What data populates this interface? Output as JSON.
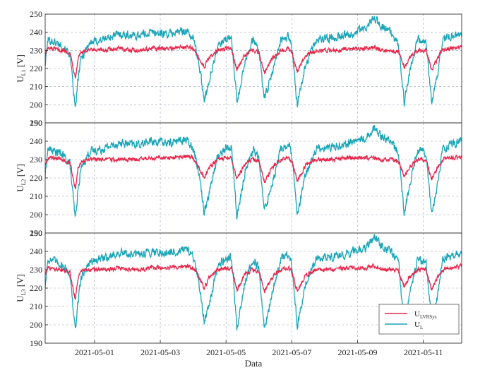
{
  "chart_data": [
    {
      "type": "line",
      "ylabel_main": "U",
      "ylabel_sub": "L1",
      "ylabel_unit": " [V]",
      "ylim": [
        190,
        250
      ],
      "yticks": [
        190,
        200,
        210,
        220,
        230,
        240,
        250
      ],
      "xlim": [
        "2021-04-29T12:00",
        "2021-05-12T04:00"
      ],
      "series": [
        {
          "key": "ul",
          "color": "#1aa6b7",
          "x": [
            "2021-04-29T12:00",
            "2021-04-29T14:00",
            "2021-04-30T00:00",
            "2021-04-30T06:00",
            "2021-04-30T10:00",
            "2021-04-30T12:00",
            "2021-04-30T14:00",
            "2021-04-30T20:00",
            "2021-05-01T06:00",
            "2021-05-01T18:00",
            "2021-05-02T06:00",
            "2021-05-02T18:00",
            "2021-05-03T06:00",
            "2021-05-03T18:00",
            "2021-05-04T00:00",
            "2021-05-04T04:00",
            "2021-05-04T08:00",
            "2021-05-04T12:00",
            "2021-05-04T18:00",
            "2021-05-05T00:00",
            "2021-05-05T04:00",
            "2021-05-05T08:00",
            "2021-05-05T14:00",
            "2021-05-05T20:00",
            "2021-05-06T00:00",
            "2021-05-06T04:00",
            "2021-05-06T10:00",
            "2021-05-06T16:00",
            "2021-05-06T22:00",
            "2021-05-07T00:00",
            "2021-05-07T04:00",
            "2021-05-07T10:00",
            "2021-05-07T18:00",
            "2021-05-08T06:00",
            "2021-05-08T18:00",
            "2021-05-09T06:00",
            "2021-05-09T12:00",
            "2021-05-09T18:00",
            "2021-05-10T00:00",
            "2021-05-10T06:00",
            "2021-05-10T10:00",
            "2021-05-10T14:00",
            "2021-05-10T20:00",
            "2021-05-11T02:00",
            "2021-05-11T06:00",
            "2021-05-11T10:00",
            "2021-05-11T14:00",
            "2021-05-11T20:00",
            "2021-05-12T04:00"
          ],
          "y": [
            222,
            236,
            233,
            228,
            197,
            214,
            225,
            234,
            236,
            239,
            238,
            240,
            239,
            241,
            237,
            224,
            203,
            214,
            232,
            236,
            237,
            201,
            225,
            236,
            230,
            203,
            218,
            236,
            238,
            232,
            199,
            222,
            236,
            237,
            239,
            242,
            248,
            243,
            240,
            233,
            201,
            218,
            236,
            234,
            202,
            214,
            236,
            238,
            240
          ]
        },
        {
          "key": "ulvr",
          "color": "#e8264a",
          "x": [
            "2021-04-29T12:00",
            "2021-04-29T14:00",
            "2021-04-30T00:00",
            "2021-04-30T06:00",
            "2021-04-30T10:00",
            "2021-04-30T12:00",
            "2021-04-30T14:00",
            "2021-04-30T20:00",
            "2021-05-01T06:00",
            "2021-05-01T18:00",
            "2021-05-02T06:00",
            "2021-05-02T18:00",
            "2021-05-03T06:00",
            "2021-05-03T18:00",
            "2021-05-04T00:00",
            "2021-05-04T04:00",
            "2021-05-04T08:00",
            "2021-05-04T12:00",
            "2021-05-04T18:00",
            "2021-05-05T00:00",
            "2021-05-05T04:00",
            "2021-05-05T08:00",
            "2021-05-05T14:00",
            "2021-05-05T20:00",
            "2021-05-06T00:00",
            "2021-05-06T04:00",
            "2021-05-06T10:00",
            "2021-05-06T16:00",
            "2021-05-06T22:00",
            "2021-05-07T00:00",
            "2021-05-07T04:00",
            "2021-05-07T10:00",
            "2021-05-07T18:00",
            "2021-05-08T06:00",
            "2021-05-08T18:00",
            "2021-05-09T06:00",
            "2021-05-09T12:00",
            "2021-05-09T18:00",
            "2021-05-10T00:00",
            "2021-05-10T06:00",
            "2021-05-10T10:00",
            "2021-05-10T14:00",
            "2021-05-10T20:00",
            "2021-05-11T02:00",
            "2021-05-11T06:00",
            "2021-05-11T10:00",
            "2021-05-11T14:00",
            "2021-05-11T20:00",
            "2021-05-12T04:00"
          ],
          "y": [
            228,
            231,
            230,
            229,
            215,
            226,
            229,
            230,
            230,
            231,
            230,
            231,
            231,
            232,
            231,
            226,
            221,
            226,
            230,
            231,
            231,
            219,
            228,
            230,
            229,
            218,
            226,
            230,
            231,
            229,
            218,
            227,
            230,
            230,
            231,
            231,
            232,
            230,
            230,
            229,
            221,
            226,
            230,
            230,
            219,
            225,
            230,
            231,
            232
          ]
        }
      ]
    },
    {
      "type": "line",
      "ylabel_main": "U",
      "ylabel_sub": "L2",
      "ylabel_unit": " [V]",
      "ylim": [
        190,
        250
      ],
      "yticks": [
        190,
        200,
        210,
        220,
        230,
        240,
        250
      ],
      "xlim": [
        "2021-04-29T12:00",
        "2021-05-12T04:00"
      ],
      "series": [
        {
          "key": "ul",
          "color": "#1aa6b7",
          "x": [
            "2021-04-29T12:00",
            "2021-04-29T14:00",
            "2021-04-30T00:00",
            "2021-04-30T06:00",
            "2021-04-30T10:00",
            "2021-04-30T12:00",
            "2021-04-30T14:00",
            "2021-04-30T20:00",
            "2021-05-01T06:00",
            "2021-05-01T18:00",
            "2021-05-02T06:00",
            "2021-05-02T18:00",
            "2021-05-03T06:00",
            "2021-05-03T18:00",
            "2021-05-04T00:00",
            "2021-05-04T04:00",
            "2021-05-04T08:00",
            "2021-05-04T12:00",
            "2021-05-04T18:00",
            "2021-05-05T00:00",
            "2021-05-05T04:00",
            "2021-05-05T08:00",
            "2021-05-05T14:00",
            "2021-05-05T20:00",
            "2021-05-06T00:00",
            "2021-05-06T04:00",
            "2021-05-06T10:00",
            "2021-05-06T16:00",
            "2021-05-06T22:00",
            "2021-05-07T00:00",
            "2021-05-07T04:00",
            "2021-05-07T10:00",
            "2021-05-07T18:00",
            "2021-05-08T06:00",
            "2021-05-08T18:00",
            "2021-05-09T06:00",
            "2021-05-09T12:00",
            "2021-05-09T18:00",
            "2021-05-10T00:00",
            "2021-05-10T06:00",
            "2021-05-10T10:00",
            "2021-05-10T14:00",
            "2021-05-10T20:00",
            "2021-05-11T02:00",
            "2021-05-11T06:00",
            "2021-05-11T10:00",
            "2021-05-11T14:00",
            "2021-05-11T20:00",
            "2021-05-12T04:00"
          ],
          "y": [
            221,
            236,
            233,
            228,
            197,
            213,
            225,
            234,
            236,
            239,
            238,
            240,
            239,
            241,
            237,
            224,
            202,
            213,
            232,
            236,
            237,
            198,
            224,
            236,
            230,
            202,
            218,
            236,
            238,
            232,
            199,
            222,
            236,
            237,
            239,
            242,
            247,
            243,
            240,
            233,
            200,
            217,
            236,
            234,
            201,
            214,
            236,
            238,
            240
          ]
        },
        {
          "key": "ulvr",
          "color": "#e8264a",
          "x": [
            "2021-04-29T12:00",
            "2021-04-29T14:00",
            "2021-04-30T00:00",
            "2021-04-30T06:00",
            "2021-04-30T10:00",
            "2021-04-30T12:00",
            "2021-04-30T14:00",
            "2021-04-30T20:00",
            "2021-05-01T06:00",
            "2021-05-01T18:00",
            "2021-05-02T06:00",
            "2021-05-02T18:00",
            "2021-05-03T06:00",
            "2021-05-03T18:00",
            "2021-05-04T00:00",
            "2021-05-04T04:00",
            "2021-05-04T08:00",
            "2021-05-04T12:00",
            "2021-05-04T18:00",
            "2021-05-05T00:00",
            "2021-05-05T04:00",
            "2021-05-05T08:00",
            "2021-05-05T14:00",
            "2021-05-05T20:00",
            "2021-05-06T00:00",
            "2021-05-06T04:00",
            "2021-05-06T10:00",
            "2021-05-06T16:00",
            "2021-05-06T22:00",
            "2021-05-07T00:00",
            "2021-05-07T04:00",
            "2021-05-07T10:00",
            "2021-05-07T18:00",
            "2021-05-08T06:00",
            "2021-05-08T18:00",
            "2021-05-09T06:00",
            "2021-05-09T12:00",
            "2021-05-09T18:00",
            "2021-05-10T00:00",
            "2021-05-10T06:00",
            "2021-05-10T10:00",
            "2021-05-10T14:00",
            "2021-05-10T20:00",
            "2021-05-11T02:00",
            "2021-05-11T06:00",
            "2021-05-11T10:00",
            "2021-05-11T14:00",
            "2021-05-11T20:00",
            "2021-05-12T04:00"
          ],
          "y": [
            227,
            231,
            230,
            229,
            214,
            226,
            229,
            230,
            230,
            230,
            230,
            231,
            231,
            232,
            231,
            226,
            220,
            226,
            230,
            231,
            231,
            219,
            228,
            230,
            229,
            218,
            226,
            230,
            231,
            229,
            218,
            227,
            230,
            230,
            231,
            231,
            231,
            230,
            230,
            229,
            221,
            226,
            230,
            230,
            219,
            225,
            230,
            231,
            231
          ]
        }
      ]
    },
    {
      "type": "line",
      "ylabel_main": "U",
      "ylabel_sub": "L3",
      "ylabel_unit": " [V]",
      "ylim": [
        190,
        250
      ],
      "yticks": [
        190,
        200,
        210,
        220,
        230,
        240,
        250
      ],
      "xlim": [
        "2021-04-29T12:00",
        "2021-05-12T04:00"
      ],
      "xticks": [
        "2021-05-01",
        "2021-05-03",
        "2021-05-05",
        "2021-05-07",
        "2021-05-09",
        "2021-05-11"
      ],
      "xlabel": "Data",
      "legend": {
        "placement": "bottom-right",
        "entries": [
          {
            "key": "ulvr",
            "main": "U",
            "sub": "LVRSys",
            "color": "#e8264a"
          },
          {
            "key": "ul",
            "main": "U",
            "sub": "L",
            "color": "#1aa6b7"
          }
        ]
      },
      "series": [
        {
          "key": "ul",
          "color": "#1aa6b7",
          "x": [
            "2021-04-29T12:00",
            "2021-04-29T14:00",
            "2021-04-30T00:00",
            "2021-04-30T06:00",
            "2021-04-30T10:00",
            "2021-04-30T12:00",
            "2021-04-30T14:00",
            "2021-04-30T20:00",
            "2021-05-01T06:00",
            "2021-05-01T18:00",
            "2021-05-02T06:00",
            "2021-05-02T18:00",
            "2021-05-03T06:00",
            "2021-05-03T18:00",
            "2021-05-04T00:00",
            "2021-05-04T04:00",
            "2021-05-04T08:00",
            "2021-05-04T12:00",
            "2021-05-04T18:00",
            "2021-05-05T00:00",
            "2021-05-05T04:00",
            "2021-05-05T08:00",
            "2021-05-05T14:00",
            "2021-05-05T20:00",
            "2021-05-06T00:00",
            "2021-05-06T04:00",
            "2021-05-06T10:00",
            "2021-05-06T16:00",
            "2021-05-06T22:00",
            "2021-05-07T00:00",
            "2021-05-07T04:00",
            "2021-05-07T10:00",
            "2021-05-07T18:00",
            "2021-05-08T06:00",
            "2021-05-08T18:00",
            "2021-05-09T06:00",
            "2021-05-09T12:00",
            "2021-05-09T18:00",
            "2021-05-10T00:00",
            "2021-05-10T06:00",
            "2021-05-10T10:00",
            "2021-05-10T14:00",
            "2021-05-10T20:00",
            "2021-05-11T02:00",
            "2021-05-11T06:00",
            "2021-05-11T10:00",
            "2021-05-11T14:00",
            "2021-05-11T20:00",
            "2021-05-12T04:00"
          ],
          "y": [
            221,
            236,
            233,
            228,
            196,
            213,
            225,
            234,
            236,
            239,
            238,
            240,
            239,
            241,
            237,
            224,
            202,
            213,
            232,
            236,
            237,
            197,
            224,
            236,
            230,
            197,
            218,
            236,
            238,
            232,
            199,
            222,
            236,
            237,
            239,
            242,
            248,
            243,
            240,
            233,
            200,
            217,
            236,
            234,
            202,
            214,
            236,
            238,
            240
          ]
        },
        {
          "key": "ulvr",
          "color": "#e8264a",
          "x": [
            "2021-04-29T12:00",
            "2021-04-29T14:00",
            "2021-04-30T00:00",
            "2021-04-30T06:00",
            "2021-04-30T10:00",
            "2021-04-30T12:00",
            "2021-04-30T14:00",
            "2021-04-30T20:00",
            "2021-05-01T06:00",
            "2021-05-01T18:00",
            "2021-05-02T06:00",
            "2021-05-02T18:00",
            "2021-05-03T06:00",
            "2021-05-03T18:00",
            "2021-05-04T00:00",
            "2021-05-04T04:00",
            "2021-05-04T08:00",
            "2021-05-04T12:00",
            "2021-05-04T18:00",
            "2021-05-05T00:00",
            "2021-05-05T04:00",
            "2021-05-05T08:00",
            "2021-05-05T14:00",
            "2021-05-05T20:00",
            "2021-05-06T00:00",
            "2021-05-06T04:00",
            "2021-05-06T10:00",
            "2021-05-06T16:00",
            "2021-05-06T22:00",
            "2021-05-07T00:00",
            "2021-05-07T04:00",
            "2021-05-07T10:00",
            "2021-05-07T18:00",
            "2021-05-08T06:00",
            "2021-05-08T18:00",
            "2021-05-09T06:00",
            "2021-05-09T12:00",
            "2021-05-09T18:00",
            "2021-05-10T00:00",
            "2021-05-10T06:00",
            "2021-05-10T10:00",
            "2021-05-10T14:00",
            "2021-05-10T20:00",
            "2021-05-11T02:00",
            "2021-05-11T06:00",
            "2021-05-11T10:00",
            "2021-05-11T14:00",
            "2021-05-11T20:00",
            "2021-05-12T04:00"
          ],
          "y": [
            228,
            231,
            230,
            229,
            214,
            226,
            229,
            230,
            230,
            231,
            230,
            231,
            231,
            232,
            231,
            226,
            220,
            226,
            230,
            231,
            231,
            219,
            228,
            230,
            229,
            218,
            226,
            230,
            231,
            229,
            218,
            227,
            230,
            230,
            231,
            231,
            232,
            230,
            230,
            229,
            221,
            226,
            230,
            230,
            219,
            225,
            230,
            231,
            232
          ]
        }
      ]
    }
  ]
}
